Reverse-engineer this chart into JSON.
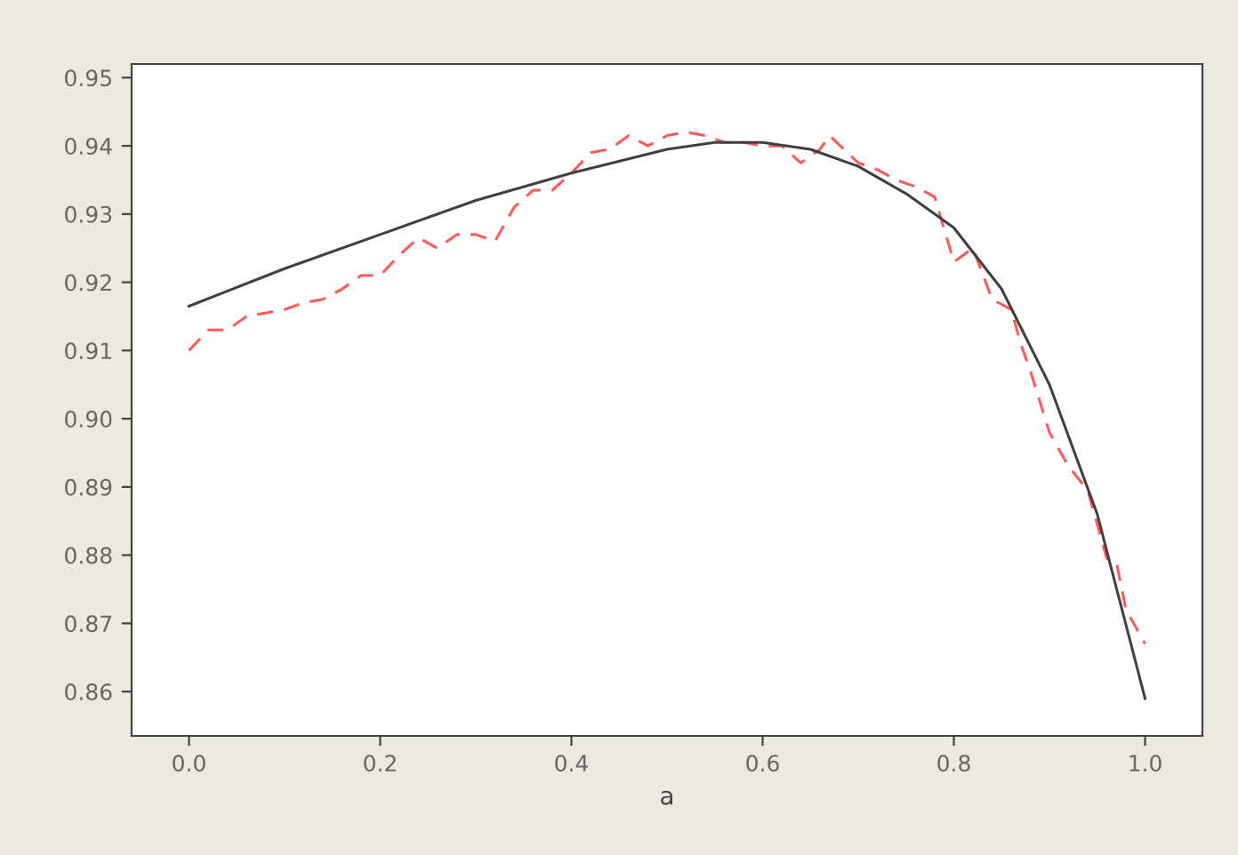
{
  "chart_data": {
    "type": "line",
    "xlabel": "a",
    "xlim": [
      -0.06,
      1.06
    ],
    "xticks": [
      {
        "value": 0.0,
        "label": "0.0"
      },
      0.2,
      0.4,
      0.6,
      0.8,
      {
        "value": 1.0,
        "label": "1.0"
      }
    ],
    "ylim": [
      0.8535,
      0.952
    ],
    "yticks": [
      0.86,
      0.87,
      0.88,
      0.89,
      {
        "value": 0.9,
        "label": "0.90"
      },
      0.91,
      0.92,
      0.93,
      0.94,
      0.95
    ],
    "grid": false,
    "series": [
      {
        "color": "#ff5a5a",
        "line_style": "dashed",
        "x": [
          0.0,
          0.02,
          0.04,
          0.06,
          0.08,
          0.1,
          0.12,
          0.14,
          0.16,
          0.18,
          0.2,
          0.22,
          0.24,
          0.26,
          0.28,
          0.3,
          0.32,
          0.34,
          0.36,
          0.38,
          0.4,
          0.42,
          0.44,
          0.46,
          0.48,
          0.5,
          0.52,
          0.54,
          0.56,
          0.58,
          0.6,
          0.62,
          0.64,
          0.66,
          0.67,
          0.7,
          0.72,
          0.74,
          0.76,
          0.78,
          0.8,
          0.82,
          0.84,
          0.86,
          0.87,
          0.88,
          0.9,
          0.92,
          0.94,
          0.96,
          0.97,
          0.98,
          1.0
        ],
        "values": [
          0.91,
          0.913,
          0.913,
          0.915,
          0.9155,
          0.916,
          0.917,
          0.9175,
          0.919,
          0.921,
          0.921,
          0.924,
          0.9265,
          0.925,
          0.927,
          0.927,
          0.926,
          0.931,
          0.9335,
          0.9335,
          0.936,
          0.939,
          0.9395,
          0.9415,
          0.94,
          0.9415,
          0.942,
          0.9415,
          0.9405,
          0.9405,
          0.94,
          0.94,
          0.9375,
          0.9395,
          0.9415,
          0.9375,
          0.9365,
          0.935,
          0.934,
          0.9325,
          0.923,
          0.925,
          0.9175,
          0.916,
          0.911,
          0.907,
          0.898,
          0.893,
          0.8895,
          0.8795,
          0.879,
          0.872,
          0.867
        ]
      },
      {
        "color": "#404040",
        "line_style": "solid",
        "x": [
          0.0,
          0.1,
          0.2,
          0.3,
          0.4,
          0.5,
          0.55,
          0.6,
          0.65,
          0.7,
          0.75,
          0.8,
          0.85,
          0.9,
          0.95,
          1.0
        ],
        "values": [
          0.9165,
          0.922,
          0.927,
          0.932,
          0.936,
          0.9395,
          0.9405,
          0.9405,
          0.9395,
          0.937,
          0.933,
          0.928,
          0.919,
          0.905,
          0.886,
          0.859
        ]
      }
    ]
  }
}
